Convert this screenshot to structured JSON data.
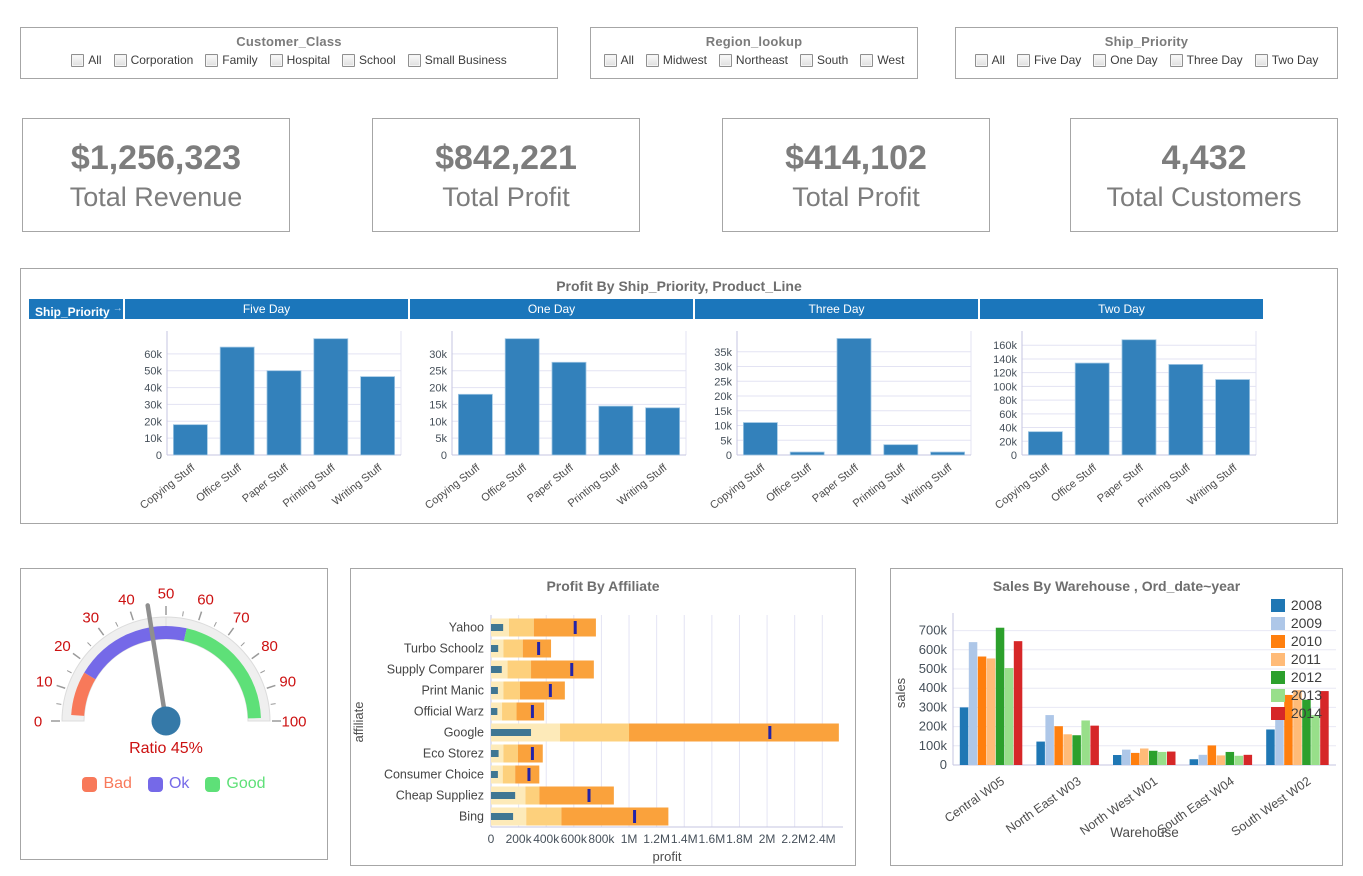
{
  "filters": [
    {
      "title": "Customer_Class",
      "options": [
        "All",
        "Corporation",
        "Family",
        "Hospital",
        "School",
        "Small Business"
      ]
    },
    {
      "title": "Region_lookup",
      "options": [
        "All",
        "Midwest",
        "Northeast",
        "South",
        "West"
      ]
    },
    {
      "title": "Ship_Priority",
      "options": [
        "All",
        "Five Day",
        "One Day",
        "Three Day",
        "Two Day"
      ]
    }
  ],
  "kpis": [
    {
      "value": "$1,256,323",
      "label": "Total Revenue"
    },
    {
      "value": "$842,221",
      "label": "Total Profit"
    },
    {
      "value": "$414,102",
      "label": "Total Profit"
    },
    {
      "value": "4,432",
      "label": "Total Customers"
    }
  ],
  "chart_data": [
    {
      "type": "bar",
      "title": "Profit By Ship_Priority, Product_Line",
      "row_header": "Ship_Priority",
      "header_color": "#1b76bb",
      "bar_color": "#3381bb",
      "grid": true,
      "categories": [
        "Copying Stuff",
        "Office Stuff",
        "Paper Stuff",
        "Printing Stuff",
        "Writing Stuff"
      ],
      "panels": [
        {
          "label": "Five Day",
          "values": [
            18000,
            64000,
            50000,
            69000,
            46500
          ],
          "tick_max": 60000,
          "scale_max": 70000,
          "tick_step": 10000
        },
        {
          "label": "One Day",
          "values": [
            18000,
            34500,
            27500,
            14500,
            14000
          ],
          "tick_max": 30000,
          "scale_max": 35000,
          "tick_step": 5000
        },
        {
          "label": "Three Day",
          "values": [
            11000,
            1000,
            39500,
            3500,
            1000
          ],
          "tick_max": 35000,
          "scale_max": 40000,
          "tick_step": 5000
        },
        {
          "label": "Two Day",
          "values": [
            34000,
            134000,
            168000,
            132000,
            110000
          ],
          "tick_max": 160000,
          "scale_max": 172000,
          "tick_step": 20000
        }
      ]
    },
    {
      "type": "gauge",
      "min": 0,
      "max": 100,
      "value": 45,
      "value_label": "Ratio 45%",
      "tick_step": 10,
      "minor_tick_step": 5,
      "label_color": "#cc1111",
      "needle_color": "#8f8f8f",
      "hub_color": "#3579a8",
      "segments": [
        {
          "name": "Bad",
          "from": 2,
          "to": 17,
          "color": "#f8795a"
        },
        {
          "name": "Ok",
          "from": 17,
          "to": 57,
          "color": "#7569e8"
        },
        {
          "name": "Good",
          "from": 57,
          "to": 99,
          "color": "#5ee078"
        }
      ]
    },
    {
      "type": "bullet",
      "title": "Profit By Affiliate",
      "xlabel": "profit",
      "ylabel": "affiliate",
      "xmax": 2550000,
      "tick_step": 200000,
      "grid": true,
      "measure_color": "#3f7693",
      "target_color": "#2323a8",
      "band_colors": [
        "#fdeab9",
        "#fdd07c",
        "#faa23c"
      ],
      "rows": [
        {
          "label": "Yahoo",
          "measure": 88000,
          "bands": [
            130000,
            310000,
            760000
          ],
          "target": 610000
        },
        {
          "label": "Turbo Schoolz",
          "measure": 52000,
          "bands": [
            90000,
            230000,
            435000
          ],
          "target": 345000
        },
        {
          "label": "Supply Comparer",
          "measure": 78000,
          "bands": [
            120000,
            290000,
            745000
          ],
          "target": 585000
        },
        {
          "label": "Print Manic",
          "measure": 50000,
          "bands": [
            90000,
            210000,
            535000
          ],
          "target": 430000
        },
        {
          "label": "Official Warz",
          "measure": 46000,
          "bands": [
            80000,
            185000,
            385000
          ],
          "target": 300000
        },
        {
          "label": "Google",
          "measure": 290000,
          "bands": [
            500000,
            1000000,
            2520000
          ],
          "target": 2020000
        },
        {
          "label": "Eco Storez",
          "measure": 55000,
          "bands": [
            90000,
            195000,
            375000
          ],
          "target": 300000
        },
        {
          "label": "Consumer Choice",
          "measure": 50000,
          "bands": [
            85000,
            175000,
            350000
          ],
          "target": 275000
        },
        {
          "label": "Cheap Suppliez",
          "measure": 175000,
          "bands": [
            250000,
            350000,
            890000
          ],
          "target": 710000
        },
        {
          "label": "Bing",
          "measure": 160000,
          "bands": [
            255000,
            510000,
            1285000
          ],
          "target": 1040000
        }
      ]
    },
    {
      "type": "bar",
      "title": "Sales By Warehouse , Ord_date~year",
      "xlabel": "Warehouse",
      "ylabel": "sales",
      "ymax": 750000,
      "tick_max": 700000,
      "tick_step": 100000,
      "grid": true,
      "legend_position": "top-right",
      "categories": [
        "Central W05",
        "North East W03",
        "North West W01",
        "South East W04",
        "South West W02"
      ],
      "series": [
        {
          "name": "2008",
          "color": "#1f77b4",
          "values": [
            300000,
            122000,
            52000,
            30000,
            185000
          ]
        },
        {
          "name": "2009",
          "color": "#aec7e8",
          "values": [
            640000,
            260000,
            80000,
            53000,
            285000
          ]
        },
        {
          "name": "2010",
          "color": "#ff7f0e",
          "values": [
            565000,
            202000,
            63000,
            102000,
            365000
          ]
        },
        {
          "name": "2011",
          "color": "#ffbb78",
          "values": [
            555000,
            160000,
            86000,
            50000,
            390000
          ]
        },
        {
          "name": "2012",
          "color": "#2ca02c",
          "values": [
            715000,
            155000,
            74000,
            68000,
            340000
          ]
        },
        {
          "name": "2013",
          "color": "#98df8a",
          "values": [
            505000,
            232000,
            68000,
            48000,
            260000
          ]
        },
        {
          "name": "2014",
          "color": "#d62728",
          "values": [
            645000,
            205000,
            70000,
            53000,
            385000
          ]
        }
      ]
    }
  ]
}
